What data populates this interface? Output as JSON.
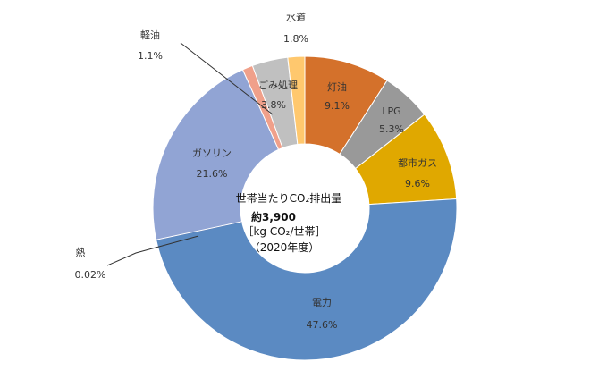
{
  "chart_data": {
    "type": "pie",
    "donut": true,
    "center_text": {
      "line1": "世帯当たりCO₂排出量",
      "line2": "約3,900",
      "line3": "［kg CO₂/世帯］",
      "line4": "（2020年度）"
    },
    "slices": [
      {
        "name": "灯油",
        "value": 9.1,
        "label": "9.1%",
        "color": "#d4712b"
      },
      {
        "name": "LPG",
        "value": 5.3,
        "label": "5.3%",
        "color": "#999999"
      },
      {
        "name": "都市ガス",
        "value": 9.6,
        "label": "9.6%",
        "color": "#e0a800"
      },
      {
        "name": "電力",
        "value": 47.6,
        "label": "47.6%",
        "color": "#5b8ac2"
      },
      {
        "name": "熱",
        "value": 0.02,
        "label": "0.02%",
        "color": "#4f6fad"
      },
      {
        "name": "ガソリン",
        "value": 21.6,
        "label": "21.6%",
        "color": "#91a4d4"
      },
      {
        "name": "軽油",
        "value": 1.1,
        "label": "1.1%",
        "color": "#f0a08a"
      },
      {
        "name": "ごみ処理",
        "value": 3.8,
        "label": "3.8%",
        "color": "#c0c0c0"
      },
      {
        "name": "水道",
        "value": 1.8,
        "label": "1.8%",
        "color": "#ffc86e"
      }
    ]
  }
}
